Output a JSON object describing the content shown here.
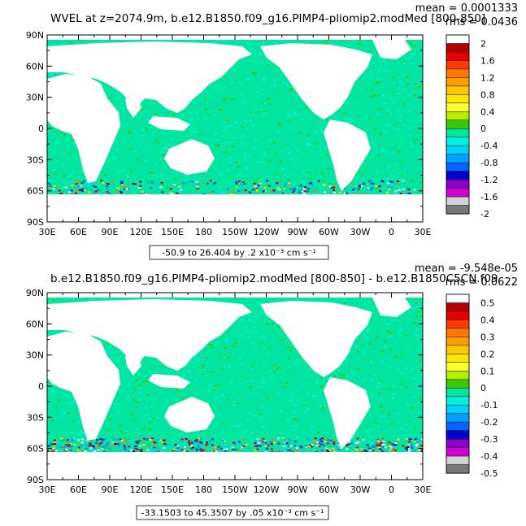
{
  "panels": [
    {
      "title": "WVEL at z=2074.9m, b.e12.B1850.f09_g16.PIMP4-pliomip2.modMed [800-850]",
      "mean_label": "mean = 0.0001333",
      "rms_label": "rms = 0.0436",
      "contour_info": "-50.9 to 26.404 by .2 x10⁻³ cm s⁻¹",
      "colorbar": {
        "labels": [
          "2",
          "1.6",
          "1.2",
          "0.8",
          "0.4",
          "0",
          "-0.4",
          "-0.8",
          "-1.2",
          "-1.6",
          "-2"
        ],
        "colors": [
          "#ffffff",
          "#b40000",
          "#e60000",
          "#ff3c00",
          "#ff7800",
          "#ff9f00",
          "#ffc800",
          "#ffe600",
          "#ffff32",
          "#b4f000",
          "#3cc800",
          "#00e6a0",
          "#00f0dc",
          "#00d2ff",
          "#00a0ff",
          "#0064ff",
          "#0000c8",
          "#8c00c8",
          "#d200d2",
          "#d2d2d2",
          "#787878"
        ]
      }
    },
    {
      "title": "b.e12.B1850.f09_g16.PIMP4-pliomip2.modMed [800-850] - b.e12.B1850C5CN.f09",
      "mean_label": "mean = -9.548e-05",
      "rms_label": "rms = 0.0622",
      "contour_info": "-33.1503 to 45.3507 by .05 x10⁻³ cm s⁻¹",
      "colorbar": {
        "labels": [
          "0.5",
          "0.4",
          "0.3",
          "0.2",
          "0.1",
          "0",
          "-0.1",
          "-0.2",
          "-0.3",
          "-0.4",
          "-0.5"
        ],
        "colors": [
          "#ffffff",
          "#b40000",
          "#e60000",
          "#ff3c00",
          "#ff7800",
          "#ff9f00",
          "#ffc800",
          "#ffe600",
          "#ffff32",
          "#b4f000",
          "#3cc800",
          "#00e6a0",
          "#00f0dc",
          "#00d2ff",
          "#00a0ff",
          "#0064ff",
          "#0000c8",
          "#8c00c8",
          "#d200d2",
          "#d2d2d2",
          "#787878"
        ]
      }
    }
  ],
  "lat_ticks": [
    "90N",
    "60N",
    "30N",
    "0",
    "30S",
    "60S",
    "90S"
  ],
  "lon_ticks": [
    "30E",
    "60E",
    "90E",
    "120E",
    "150E",
    "180",
    "150W",
    "120W",
    "90W",
    "60W",
    "30W",
    "0",
    "30E"
  ],
  "colors": {
    "ocean": "#00e6a0",
    "ocean_light": "#00f0dc",
    "land": "#ffffff"
  }
}
